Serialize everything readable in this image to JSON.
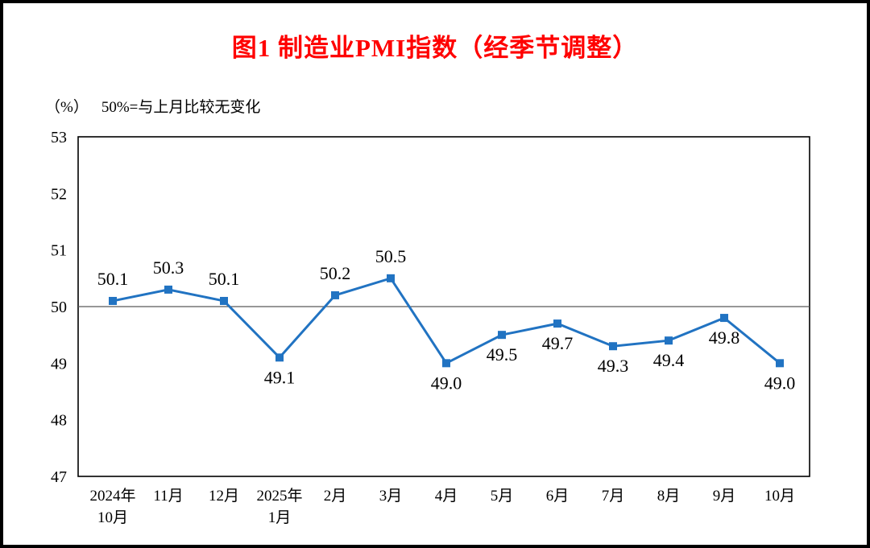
{
  "page": {
    "title": "图1  制造业PMI指数（经季节调整）",
    "subtitle_unit": "（%）",
    "subtitle_note": "50%=与上月比较无变化"
  },
  "colors": {
    "title_color": "#ff0000",
    "axis_color": "#000000",
    "reference_line_color": "#595959"
  },
  "chart_data": {
    "type": "line",
    "title": "图1  制造业PMI指数（经季节调整）",
    "subtitle": "（%） 50%=与上月比较无变化",
    "categories": [
      [
        "2024年",
        "10月"
      ],
      [
        "11月"
      ],
      [
        "12月"
      ],
      [
        "2025年",
        "1月"
      ],
      [
        "2月"
      ],
      [
        "3月"
      ],
      [
        "4月"
      ],
      [
        "5月"
      ],
      [
        "6月"
      ],
      [
        "7月"
      ],
      [
        "8月"
      ],
      [
        "9月"
      ],
      [
        "10月"
      ]
    ],
    "values": [
      50.1,
      50.3,
      50.1,
      49.1,
      50.2,
      50.5,
      49.0,
      49.5,
      49.7,
      49.3,
      49.4,
      49.8,
      49.0
    ],
    "ylabel": "%",
    "ylim": [
      47,
      53
    ],
    "ytick_step": 1,
    "reference_line": 50,
    "line_color": "#2173c2",
    "marker": "square",
    "grid": false,
    "legend": false,
    "label_rule": "labels above points when value >= 50, below otherwise"
  }
}
